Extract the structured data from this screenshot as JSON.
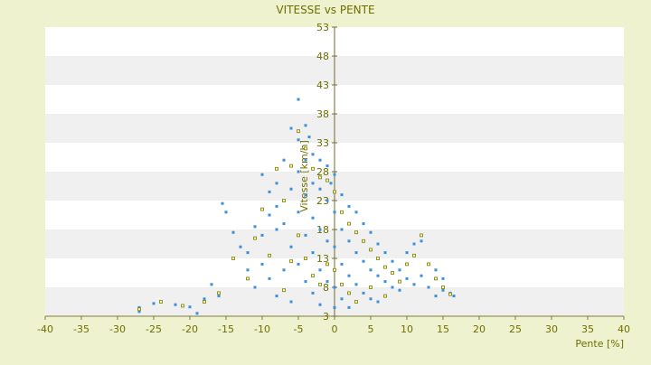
{
  "chart_data": {
    "type": "scatter",
    "title": "VITESSE vs PENTE",
    "xlabel": "Pente [%]",
    "ylabel": "Vitesse [km/h]",
    "xlim": [
      -40,
      40
    ],
    "ylim": [
      3,
      53
    ],
    "x_ticks": [
      "-40",
      "-35",
      "-30",
      "-25",
      "-20",
      "-15",
      "-10",
      "-5",
      "0",
      "5",
      "10",
      "15",
      "20",
      "25",
      "30",
      "35",
      "40"
    ],
    "y_ticks": [
      "3",
      "8",
      "13",
      "18",
      "23",
      "28",
      "33",
      "38",
      "43",
      "48",
      "53"
    ],
    "grid": "horizontal alternating bands",
    "series": [
      {
        "color": "#3d8fd8",
        "points": [
          [
            -27,
            4.5
          ],
          [
            -27,
            3.8
          ],
          [
            -25,
            5.2
          ],
          [
            -22,
            5.0
          ],
          [
            -20,
            4.6
          ],
          [
            -19,
            3.5
          ],
          [
            -18,
            6.0
          ],
          [
            -17,
            8.5
          ],
          [
            -16,
            6.5
          ],
          [
            -15.5,
            22.5
          ],
          [
            -15,
            21.0
          ],
          [
            -14,
            17.5
          ],
          [
            -13,
            15.0
          ],
          [
            -12,
            11.0
          ],
          [
            -12,
            14.0
          ],
          [
            -11,
            18.5
          ],
          [
            -11,
            8.0
          ],
          [
            -10,
            27.5
          ],
          [
            -10,
            17.0
          ],
          [
            -10,
            12.0
          ],
          [
            -9,
            24.5
          ],
          [
            -9,
            20.5
          ],
          [
            -9,
            9.5
          ],
          [
            -8,
            26.0
          ],
          [
            -8,
            22.0
          ],
          [
            -8,
            18.0
          ],
          [
            -8,
            6.5
          ],
          [
            -7,
            30.0
          ],
          [
            -7,
            19.0
          ],
          [
            -7,
            11.0
          ],
          [
            -6,
            35.5
          ],
          [
            -6,
            25.0
          ],
          [
            -6,
            15.0
          ],
          [
            -6,
            5.5
          ],
          [
            -5,
            40.5
          ],
          [
            -5,
            33.5
          ],
          [
            -5,
            28.0
          ],
          [
            -5,
            21.0
          ],
          [
            -5,
            12.0
          ],
          [
            -4,
            36.0
          ],
          [
            -4,
            30.0
          ],
          [
            -4,
            24.0
          ],
          [
            -4,
            17.0
          ],
          [
            -4,
            9.0
          ],
          [
            -3.5,
            34.0
          ],
          [
            -3,
            31.0
          ],
          [
            -3,
            26.0
          ],
          [
            -3,
            20.0
          ],
          [
            -3,
            14.0
          ],
          [
            -3,
            7.0
          ],
          [
            -2,
            30.0
          ],
          [
            -2,
            25.0
          ],
          [
            -2,
            18.0
          ],
          [
            -2,
            11.0
          ],
          [
            -2,
            5.0
          ],
          [
            -1,
            29.0
          ],
          [
            -1,
            23.0
          ],
          [
            -1,
            16.0
          ],
          [
            -1,
            9.0
          ],
          [
            -0.5,
            26.0
          ],
          [
            0,
            27.5
          ],
          [
            0,
            21.0
          ],
          [
            0,
            15.0
          ],
          [
            0,
            8.0
          ],
          [
            0,
            4.5
          ],
          [
            1,
            24.0
          ],
          [
            1,
            18.0
          ],
          [
            1,
            12.0
          ],
          [
            1,
            6.0
          ],
          [
            2,
            22.0
          ],
          [
            2,
            16.0
          ],
          [
            2,
            10.0
          ],
          [
            2,
            4.5
          ],
          [
            3,
            21.0
          ],
          [
            3,
            14.0
          ],
          [
            3,
            8.5
          ],
          [
            4,
            19.0
          ],
          [
            4,
            12.5
          ],
          [
            4,
            7.0
          ],
          [
            5,
            17.5
          ],
          [
            5,
            11.0
          ],
          [
            5,
            6.0
          ],
          [
            6,
            15.5
          ],
          [
            6,
            10.0
          ],
          [
            6,
            5.5
          ],
          [
            7,
            14.0
          ],
          [
            7,
            9.0
          ],
          [
            8,
            12.5
          ],
          [
            8,
            8.0
          ],
          [
            9,
            11.0
          ],
          [
            9,
            7.5
          ],
          [
            10,
            14.0
          ],
          [
            10,
            9.5
          ],
          [
            11,
            15.5
          ],
          [
            11,
            8.5
          ],
          [
            12,
            16.0
          ],
          [
            12,
            10.0
          ],
          [
            13,
            8.0
          ],
          [
            14,
            11.0
          ],
          [
            14,
            6.5
          ],
          [
            15,
            9.5
          ],
          [
            15,
            7.5
          ],
          [
            16,
            7.0
          ],
          [
            16.5,
            6.5
          ]
        ]
      },
      {
        "color": "#7a7a10",
        "points": [
          [
            -27,
            4.2
          ],
          [
            -24,
            5.5
          ],
          [
            -21,
            4.8
          ],
          [
            -18,
            5.5
          ],
          [
            -16,
            7.0
          ],
          [
            -14,
            13.0
          ],
          [
            -12,
            9.5
          ],
          [
            -11,
            16.5
          ],
          [
            -10,
            21.5
          ],
          [
            -9,
            13.5
          ],
          [
            -8,
            28.5
          ],
          [
            -7,
            23.0
          ],
          [
            -7,
            7.5
          ],
          [
            -6,
            29.0
          ],
          [
            -6,
            12.5
          ],
          [
            -5,
            35.0
          ],
          [
            -5,
            17.0
          ],
          [
            -4,
            32.0
          ],
          [
            -4,
            13.0
          ],
          [
            -3,
            28.5
          ],
          [
            -3,
            10.0
          ],
          [
            -2,
            27.0
          ],
          [
            -2,
            8.5
          ],
          [
            -1,
            26.5
          ],
          [
            -1,
            12.0
          ],
          [
            0,
            24.5
          ],
          [
            0,
            11.0
          ],
          [
            1,
            21.0
          ],
          [
            1,
            8.5
          ],
          [
            2,
            19.0
          ],
          [
            2,
            7.0
          ],
          [
            3,
            17.5
          ],
          [
            3,
            5.5
          ],
          [
            4,
            16.0
          ],
          [
            5,
            14.5
          ],
          [
            5,
            8.0
          ],
          [
            6,
            13.0
          ],
          [
            7,
            11.5
          ],
          [
            7,
            6.5
          ],
          [
            8,
            10.5
          ],
          [
            9,
            9.0
          ],
          [
            10,
            12.0
          ],
          [
            11,
            13.5
          ],
          [
            12,
            17.0
          ],
          [
            13,
            12.0
          ],
          [
            14,
            9.5
          ],
          [
            15,
            8.0
          ],
          [
            16,
            6.8
          ]
        ]
      }
    ]
  }
}
